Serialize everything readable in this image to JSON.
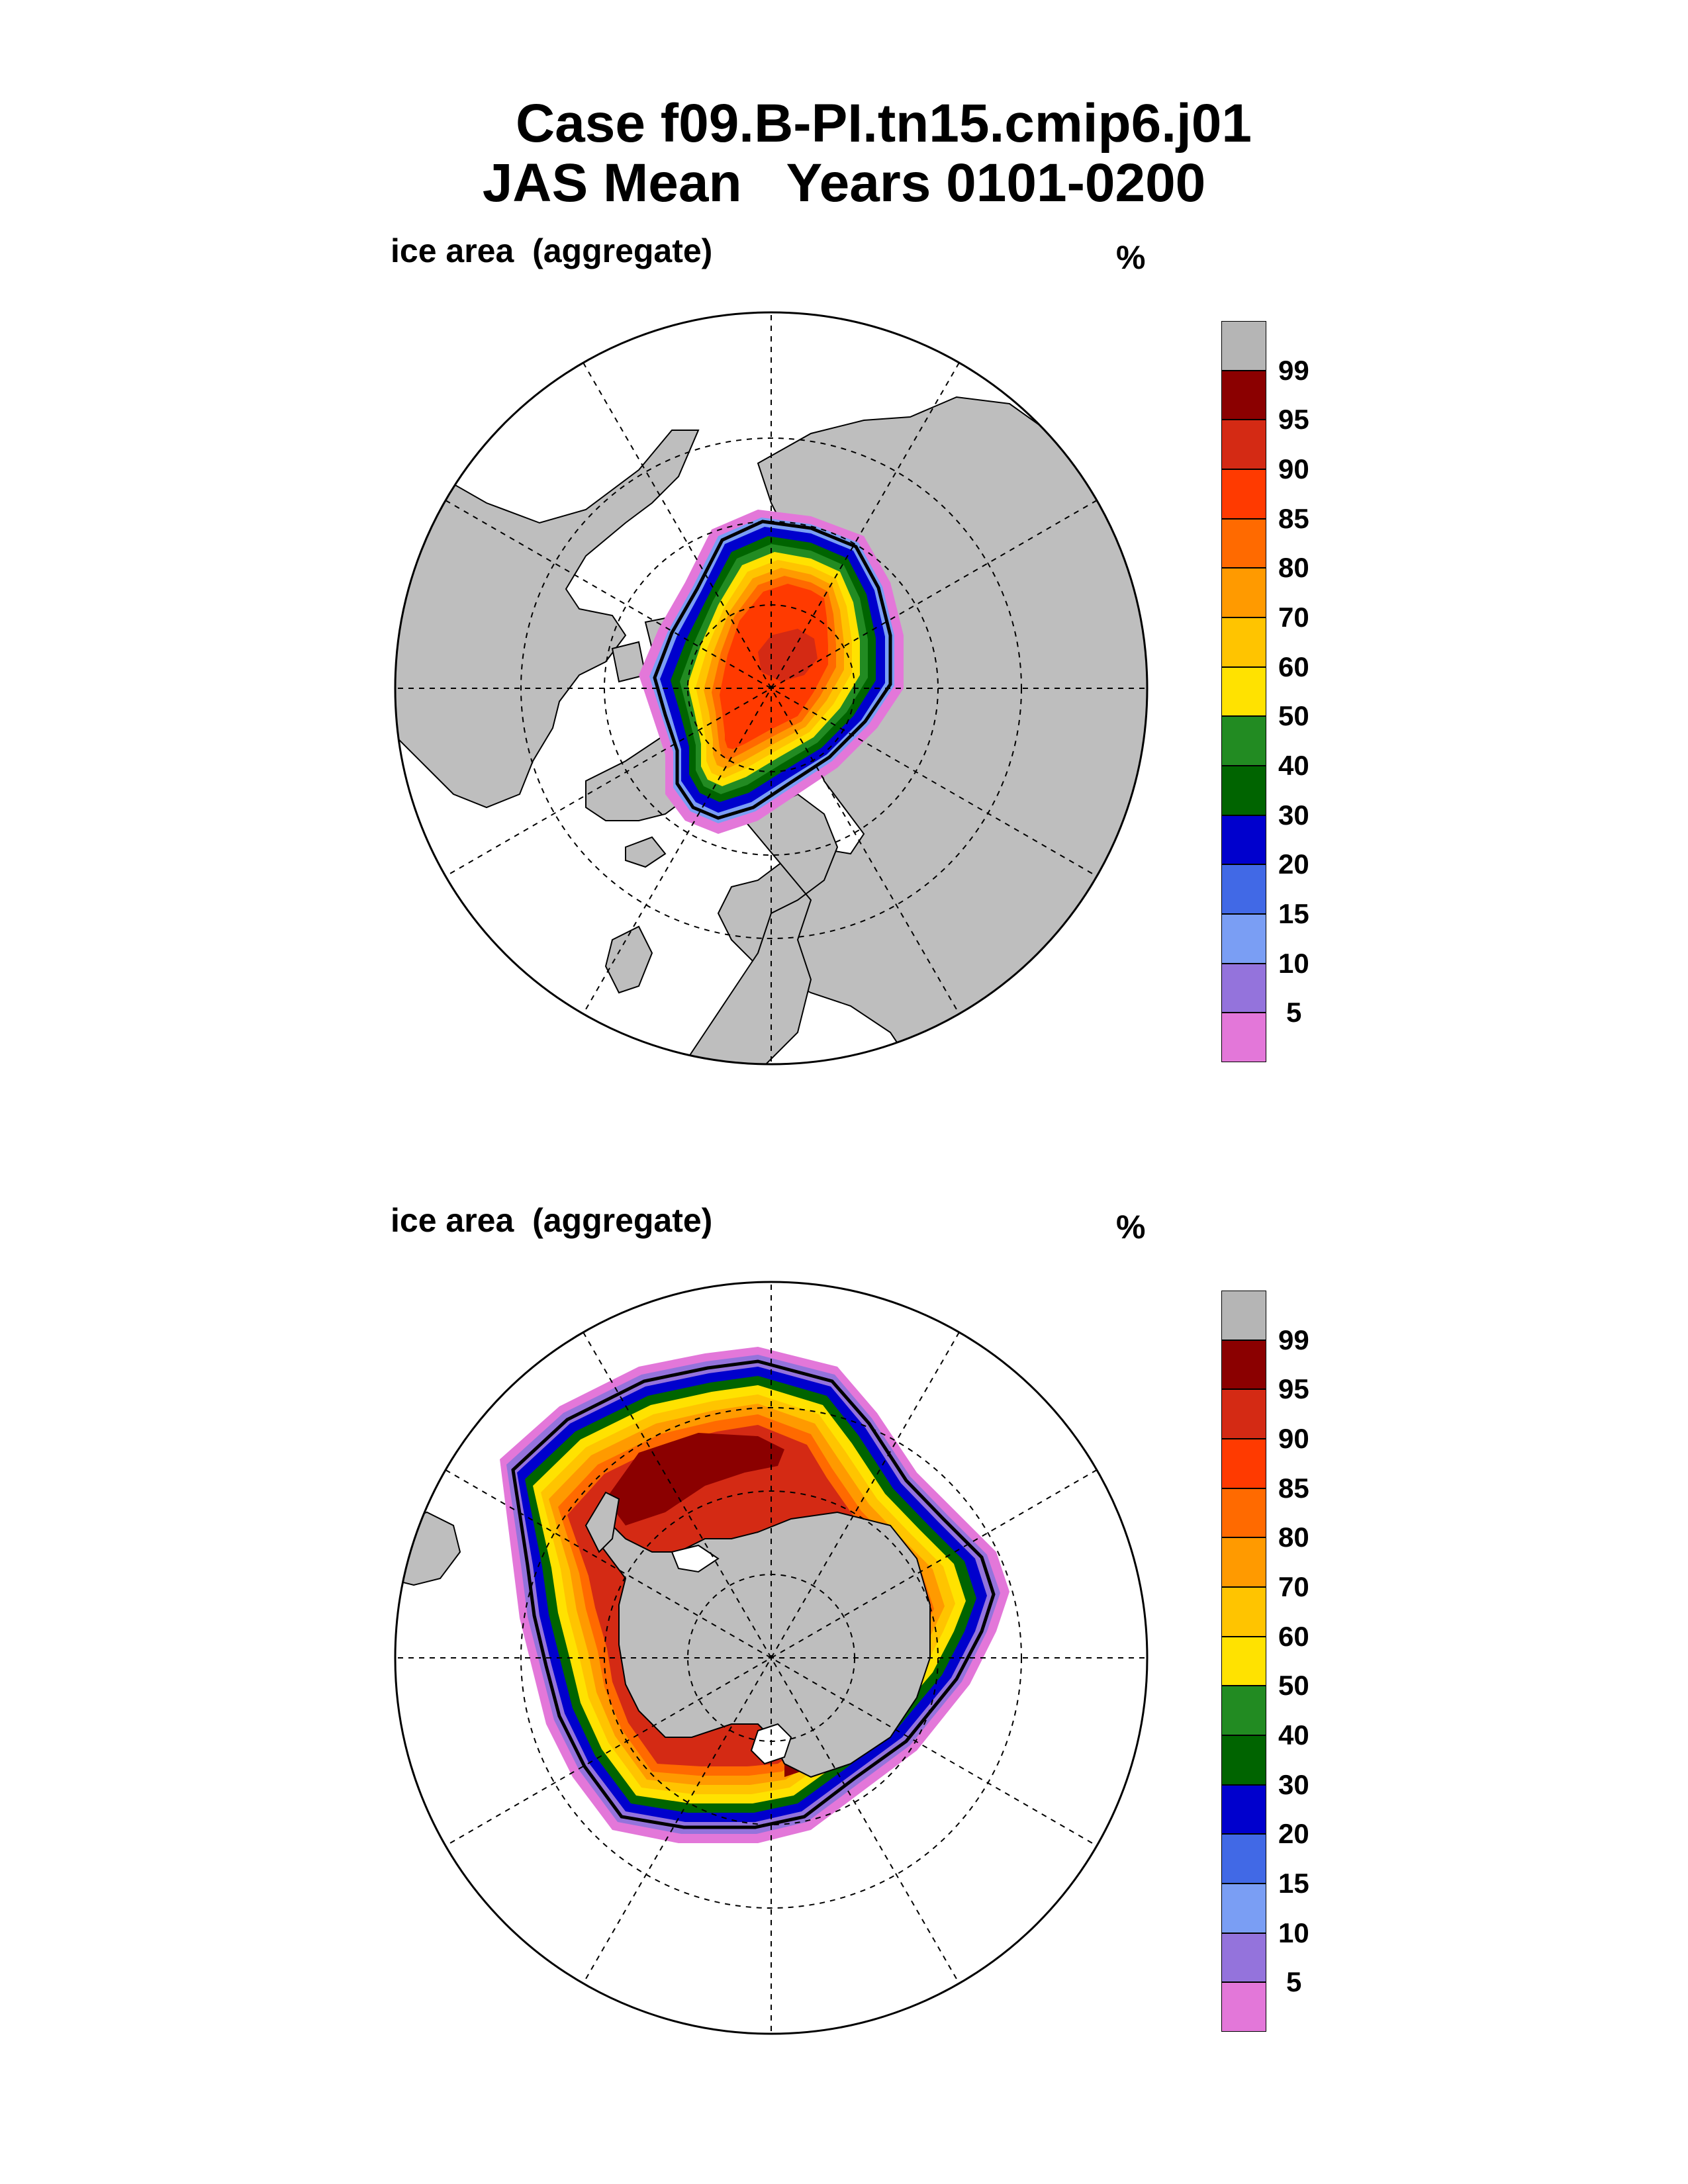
{
  "title": {
    "line1": "Case f09.B-PI.tn15.cmip6.j01",
    "line2": "JAS Mean   Years 0101-0200"
  },
  "panels": [
    {
      "id": "north",
      "hemisphere": "Arctic",
      "label": "ice area  (aggregate)",
      "units": "%"
    },
    {
      "id": "south",
      "hemisphere": "Antarctic",
      "label": "ice area  (aggregate)",
      "units": "%"
    }
  ],
  "colorbar": {
    "levels": [
      "5",
      "10",
      "15",
      "20",
      "30",
      "40",
      "50",
      "60",
      "70",
      "80",
      "85",
      "90",
      "95",
      "99"
    ],
    "colors": [
      "#e377d9",
      "#9473dc",
      "#7a9ef4",
      "#4169e6",
      "#0000cd",
      "#006400",
      "#228b22",
      "#ffe200",
      "#ffc400",
      "#ff9a00",
      "#ff6a00",
      "#ff3a00",
      "#d42a14",
      "#8b0000",
      "#b5b5b5"
    ]
  },
  "colors": {
    "land": "#bebebe",
    "ocean": "#ffffff",
    "outline": "#000000"
  }
}
